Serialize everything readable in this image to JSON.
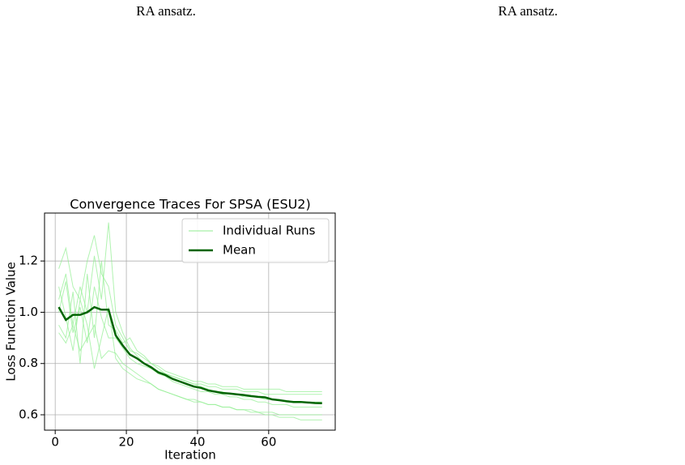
{
  "captions": [
    "RA ansatz.",
    "RA ansatz."
  ],
  "chart_data": {
    "type": "line",
    "title": "Convergence Traces For SPSA (ESU2)",
    "xlabel": "Iteration",
    "ylabel": "Loss Function Value",
    "x": [
      1,
      3,
      5,
      7,
      9,
      11,
      13,
      15,
      17,
      19,
      21,
      23,
      25,
      27,
      29,
      31,
      33,
      35,
      37,
      39,
      41,
      43,
      45,
      47,
      49,
      51,
      53,
      55,
      57,
      59,
      61,
      63,
      65,
      67,
      69,
      71,
      73,
      75
    ],
    "series": [
      {
        "name": "Individual Runs",
        "color": "#90ee90",
        "runs": [
          [
            1.17,
            1.25,
            1.1,
            1.05,
            1.2,
            1.3,
            1.15,
            1.1,
            0.95,
            0.9,
            0.85,
            0.84,
            0.82,
            0.8,
            0.79,
            0.77,
            0.76,
            0.75,
            0.74,
            0.73,
            0.73,
            0.72,
            0.72,
            0.71,
            0.71,
            0.71,
            0.7,
            0.7,
            0.7,
            0.7,
            0.7,
            0.7,
            0.69,
            0.69,
            0.69,
            0.69,
            0.69,
            0.69
          ],
          [
            0.92,
            0.88,
            0.95,
            0.85,
            0.9,
            0.95,
            0.82,
            0.85,
            0.84,
            0.8,
            0.78,
            0.76,
            0.74,
            0.72,
            0.7,
            0.69,
            0.68,
            0.67,
            0.66,
            0.66,
            0.65,
            0.64,
            0.64,
            0.63,
            0.63,
            0.62,
            0.62,
            0.61,
            0.61,
            0.6,
            0.6,
            0.59,
            0.59,
            0.59,
            0.58,
            0.58,
            0.58,
            0.58
          ],
          [
            1.05,
            1.15,
            0.95,
            1.1,
            1.0,
            1.22,
            1.05,
            1.35,
            1.0,
            0.92,
            0.86,
            0.83,
            0.8,
            0.78,
            0.76,
            0.75,
            0.73,
            0.72,
            0.71,
            0.7,
            0.69,
            0.69,
            0.68,
            0.68,
            0.67,
            0.67,
            0.66,
            0.66,
            0.65,
            0.65,
            0.64,
            0.64,
            0.64,
            0.63,
            0.63,
            0.63,
            0.63,
            0.63
          ],
          [
            0.95,
            0.9,
            1.08,
            0.8,
            1.15,
            0.9,
            1.2,
            0.95,
            0.93,
            0.88,
            0.9,
            0.85,
            0.83,
            0.8,
            0.78,
            0.76,
            0.75,
            0.74,
            0.73,
            0.72,
            0.71,
            0.7,
            0.69,
            0.69,
            0.68,
            0.68,
            0.67,
            0.67,
            0.67,
            0.66,
            0.66,
            0.66,
            0.65,
            0.65,
            0.65,
            0.65,
            0.65,
            0.65
          ],
          [
            1.1,
            0.98,
            0.85,
            1.05,
            0.95,
            0.78,
            0.9,
            1.02,
            0.82,
            0.78,
            0.76,
            0.74,
            0.73,
            0.72,
            0.7,
            0.69,
            0.68,
            0.67,
            0.66,
            0.65,
            0.65,
            0.64,
            0.64,
            0.63,
            0.63,
            0.62,
            0.62,
            0.62,
            0.61,
            0.61,
            0.61,
            0.6,
            0.6,
            0.6,
            0.6,
            0.6,
            0.6,
            0.6
          ],
          [
            1.0,
            1.12,
            0.92,
            1.02,
            0.88,
            1.1,
            0.98,
            0.9,
            0.9,
            0.86,
            0.82,
            0.8,
            0.79,
            0.78,
            0.77,
            0.76,
            0.75,
            0.74,
            0.73,
            0.72,
            0.72,
            0.71,
            0.71,
            0.7,
            0.7,
            0.7,
            0.69,
            0.69,
            0.69,
            0.68,
            0.68,
            0.68,
            0.68,
            0.68,
            0.68,
            0.68,
            0.68,
            0.68
          ]
        ]
      },
      {
        "name": "Mean",
        "color": "#006400",
        "values": [
          1.02,
          0.97,
          0.99,
          0.99,
          1.0,
          1.02,
          1.01,
          1.01,
          0.91,
          0.87,
          0.835,
          0.82,
          0.8,
          0.785,
          0.765,
          0.755,
          0.74,
          0.73,
          0.72,
          0.71,
          0.705,
          0.695,
          0.69,
          0.685,
          0.683,
          0.68,
          0.677,
          0.673,
          0.67,
          0.668,
          0.66,
          0.657,
          0.653,
          0.65,
          0.65,
          0.648,
          0.646,
          0.645
        ]
      }
    ],
    "xlim": [
      -3,
      78.7
    ],
    "ylim": [
      0.54,
      1.387
    ],
    "xticks": [
      0,
      20,
      40,
      60
    ],
    "yticks": [
      0.6,
      0.8,
      {
        "value": 1,
        "label": "1.0"
      },
      1.2
    ],
    "grid": true,
    "legend": "upper right"
  }
}
